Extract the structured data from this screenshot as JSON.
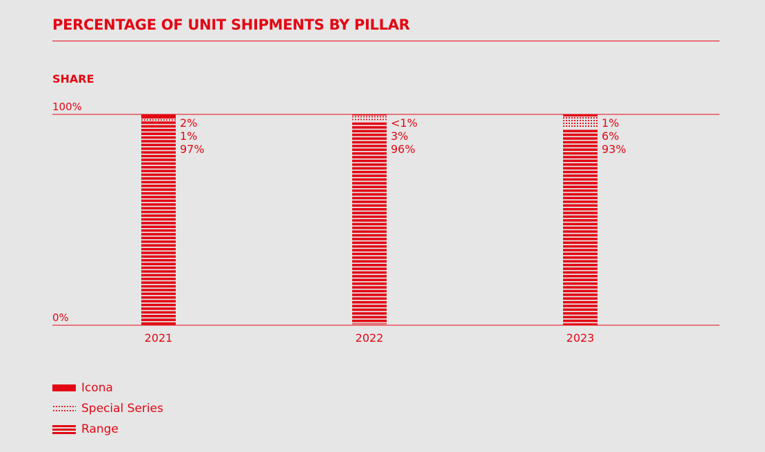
{
  "chart_data": {
    "type": "bar",
    "stacked": true,
    "title": "PERCENTAGE OF UNIT SHIPMENTS BY PILLAR",
    "ylabel": "SHARE",
    "xlabel": "",
    "ylim": [
      0,
      100
    ],
    "y_ticks": [
      {
        "value": 100,
        "label": "100%"
      },
      {
        "value": 0,
        "label": "0%"
      }
    ],
    "categories": [
      "2021",
      "2022",
      "2023"
    ],
    "series": [
      {
        "name": "Icona",
        "pattern": "solid",
        "values": [
          2,
          0.5,
          1
        ],
        "labels": [
          "2%",
          "<1%",
          "1%"
        ]
      },
      {
        "name": "Special Series",
        "pattern": "dotted",
        "values": [
          1,
          3,
          6
        ],
        "labels": [
          "1%",
          "3%",
          "6%"
        ]
      },
      {
        "name": "Range",
        "pattern": "striped",
        "values": [
          97,
          96,
          93
        ],
        "labels": [
          "97%",
          "96%",
          "93%"
        ]
      }
    ],
    "legend_position": "bottom-left"
  },
  "colors": {
    "accent": "#e30613",
    "background": "#e6e6e6"
  }
}
